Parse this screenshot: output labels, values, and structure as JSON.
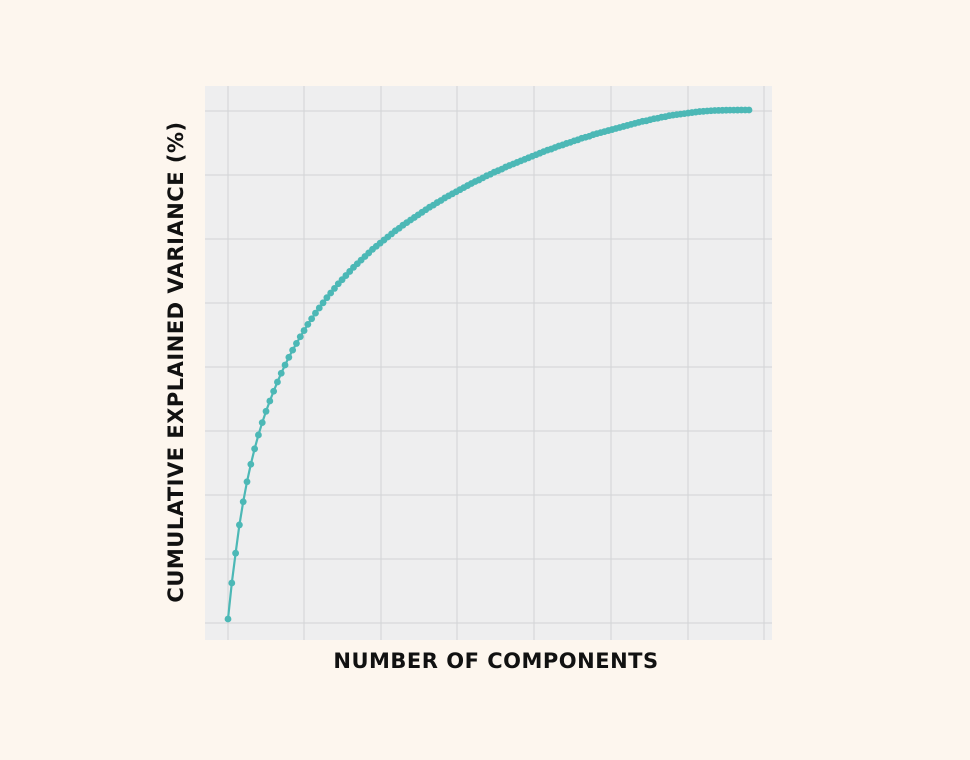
{
  "chart_data": {
    "type": "line",
    "title": "",
    "xlabel": "NUMBER OF COMPONENTS",
    "ylabel": "CUMULATIVE EXPLAINED VARIANCE (%)",
    "x_tick_labels_shown": false,
    "y_tick_labels_shown": false,
    "grid": true,
    "legend": "none",
    "xlim": [
      0,
      138
    ],
    "ylim": [
      0,
      105
    ],
    "series": [
      {
        "marker": "circle",
        "color": "#4cb8b6",
        "x": [
          1,
          2,
          3,
          4,
          5,
          6,
          7,
          8,
          9,
          10,
          11,
          12,
          13,
          14,
          15,
          16,
          17,
          18,
          19,
          20,
          21,
          22,
          23,
          24,
          25,
          26,
          27,
          28,
          29,
          30,
          31,
          32,
          33,
          34,
          35,
          36,
          37,
          38,
          39,
          40,
          41,
          42,
          43,
          44,
          45,
          46,
          47,
          48,
          49,
          50,
          51,
          52,
          53,
          54,
          55,
          56,
          57,
          58,
          59,
          60,
          61,
          62,
          63,
          64,
          65,
          66,
          67,
          68,
          69,
          70,
          71,
          72,
          73,
          74,
          75,
          76,
          77,
          78,
          79,
          80,
          81,
          82,
          83,
          84,
          85,
          86,
          87,
          88,
          89,
          90,
          91,
          92,
          93,
          94,
          95,
          96,
          97,
          98,
          99,
          100,
          101,
          102,
          103,
          104,
          105,
          106,
          107,
          108,
          109,
          110,
          111,
          112,
          113,
          114,
          115,
          116,
          117,
          118,
          119,
          120,
          121,
          122,
          123,
          124,
          125,
          126,
          127,
          128,
          129,
          130,
          131,
          132,
          133,
          134,
          135,
          136,
          137,
          138
        ],
        "y": [
          1.0,
          8.0,
          13.8,
          19.3,
          23.8,
          27.7,
          31.1,
          34.1,
          36.8,
          39.2,
          41.4,
          43.4,
          45.3,
          47.1,
          48.8,
          50.4,
          51.9,
          53.3,
          54.6,
          55.9,
          57.1,
          58.3,
          59.4,
          60.5,
          61.5,
          62.5,
          63.5,
          64.4,
          65.3,
          66.2,
          67.0,
          67.8,
          68.6,
          69.4,
          70.1,
          70.8,
          71.5,
          72.2,
          72.9,
          73.5,
          74.1,
          74.7,
          75.3,
          75.9,
          76.5,
          77.0,
          77.6,
          78.1,
          78.6,
          79.1,
          79.6,
          80.1,
          80.6,
          81.1,
          81.5,
          82.0,
          82.4,
          82.9,
          83.3,
          83.7,
          84.1,
          84.5,
          84.9,
          85.3,
          85.7,
          86.1,
          86.4,
          86.8,
          87.2,
          87.5,
          87.9,
          88.2,
          88.5,
          88.9,
          89.2,
          89.5,
          89.8,
          90.1,
          90.4,
          90.7,
          91.0,
          91.3,
          91.6,
          91.9,
          92.2,
          92.4,
          92.7,
          93.0,
          93.2,
          93.5,
          93.7,
          94.0,
          94.2,
          94.5,
          94.7,
          94.9,
          95.2,
          95.4,
          95.6,
          95.8,
          96.0,
          96.2,
          96.4,
          96.6,
          96.8,
          97.0,
          97.2,
          97.4,
          97.6,
          97.8,
          97.9,
          98.1,
          98.3,
          98.4,
          98.6,
          98.7,
          98.9,
          99.0,
          99.1,
          99.2,
          99.3,
          99.4,
          99.5,
          99.6,
          99.7,
          99.75,
          99.8,
          99.85,
          99.9,
          99.92,
          99.94,
          99.96,
          99.97,
          99.98,
          99.99,
          100.0,
          100.0,
          100.0
        ]
      }
    ]
  }
}
